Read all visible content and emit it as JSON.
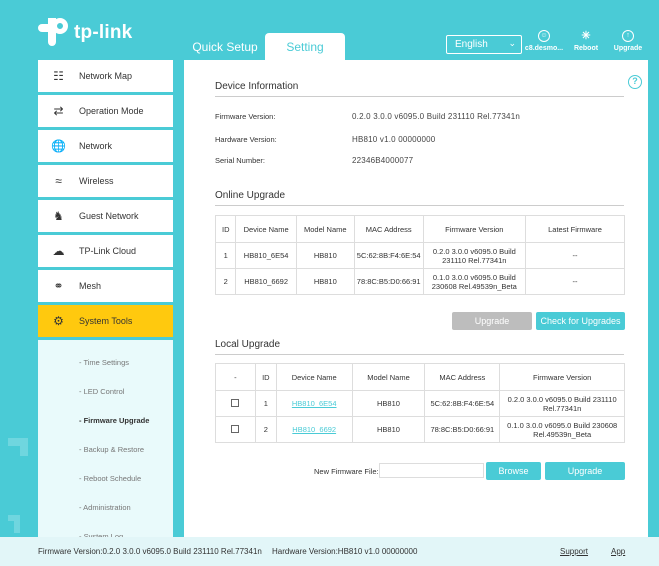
{
  "brand": {
    "name": "tp-link"
  },
  "header": {
    "tabs": [
      {
        "label": "Quick Setup"
      },
      {
        "label": "Setting"
      }
    ],
    "language": "English",
    "buttons": [
      {
        "label": "c8.desmo..."
      },
      {
        "label": "Reboot"
      },
      {
        "label": "Upgrade"
      }
    ]
  },
  "sidebar": {
    "items": [
      {
        "label": "Network Map",
        "icon": "network-map-icon"
      },
      {
        "label": "Operation Mode",
        "icon": "operation-mode-icon"
      },
      {
        "label": "Network",
        "icon": "globe-icon"
      },
      {
        "label": "Wireless",
        "icon": "wifi-icon"
      },
      {
        "label": "Guest Network",
        "icon": "guest-network-icon"
      },
      {
        "label": "TP-Link Cloud",
        "icon": "cloud-icon"
      },
      {
        "label": "Mesh",
        "icon": "mesh-icon"
      },
      {
        "label": "System Tools",
        "icon": "gear-icon"
      }
    ],
    "subitems": [
      "- Time Settings",
      "- LED Control",
      "- Firmware Upgrade",
      "- Backup & Restore",
      "- Reboot Schedule",
      "- Administration",
      "- System Log"
    ]
  },
  "device_info": {
    "title": "Device Information",
    "firmware_label": "Firmware Version:",
    "firmware_value": "0.2.0 3.0.0 v6095.0 Build 231110 Rel.77341n",
    "hardware_label": "Hardware Version:",
    "hardware_value": "HB810 v1.0 00000000",
    "serial_label": "Serial Number:",
    "serial_value": "22346B4000077"
  },
  "online_upgrade": {
    "title": "Online Upgrade",
    "headers": [
      "ID",
      "Device Name",
      "Model Name",
      "MAC Address",
      "Firmware Version",
      "Latest Firmware"
    ],
    "rows": [
      {
        "id": "1",
        "device": "HB810_6E54",
        "model": "HB810",
        "mac": "5C:62:8B:F4:6E:54",
        "firmware": "0.2.0 3.0.0 v6095.0 Build 231110 Rel.77341n",
        "latest": "--"
      },
      {
        "id": "2",
        "device": "HB810_6692",
        "model": "HB810",
        "mac": "78:8C:B5:D0:66:91",
        "firmware": "0.1.0 3.0.0 v6095.0 Build 230608 Rel.49539n_Beta",
        "latest": "--"
      }
    ],
    "upgrade_label": "Upgrade",
    "check_label": "Check for Upgrades"
  },
  "local_upgrade": {
    "title": "Local Upgrade",
    "headers": [
      "-",
      "ID",
      "Device Name",
      "Model Name",
      "MAC Address",
      "Firmware Version"
    ],
    "rows": [
      {
        "id": "1",
        "device": "HB810_6E54",
        "model": "HB810",
        "mac": "5C:62:8B:F4:6E:54",
        "firmware": "0.2.0 3.0.0 v6095.0 Build 231110 Rel.77341n"
      },
      {
        "id": "2",
        "device": "HB810_6692",
        "model": "HB810",
        "mac": "78:8C:B5:D0:66:91",
        "firmware": "0.1.0 3.0.0 v6095.0 Build 230608 Rel.49539n_Beta"
      }
    ],
    "file_label": "New Firmware File:",
    "browse_label": "Browse",
    "upgrade_label": "Upgrade"
  },
  "footer": {
    "firmware": "Firmware Version:0.2.0 3.0.0 v6095.0 Build 231110 Rel.77341n",
    "hardware": "Hardware Version:HB810 v1.0 00000000",
    "support": "Support",
    "app": "App"
  },
  "colors": {
    "accent": "#4acbd6",
    "active_nav": "#ffc90e",
    "button_disabled": "#bdbdbd"
  }
}
